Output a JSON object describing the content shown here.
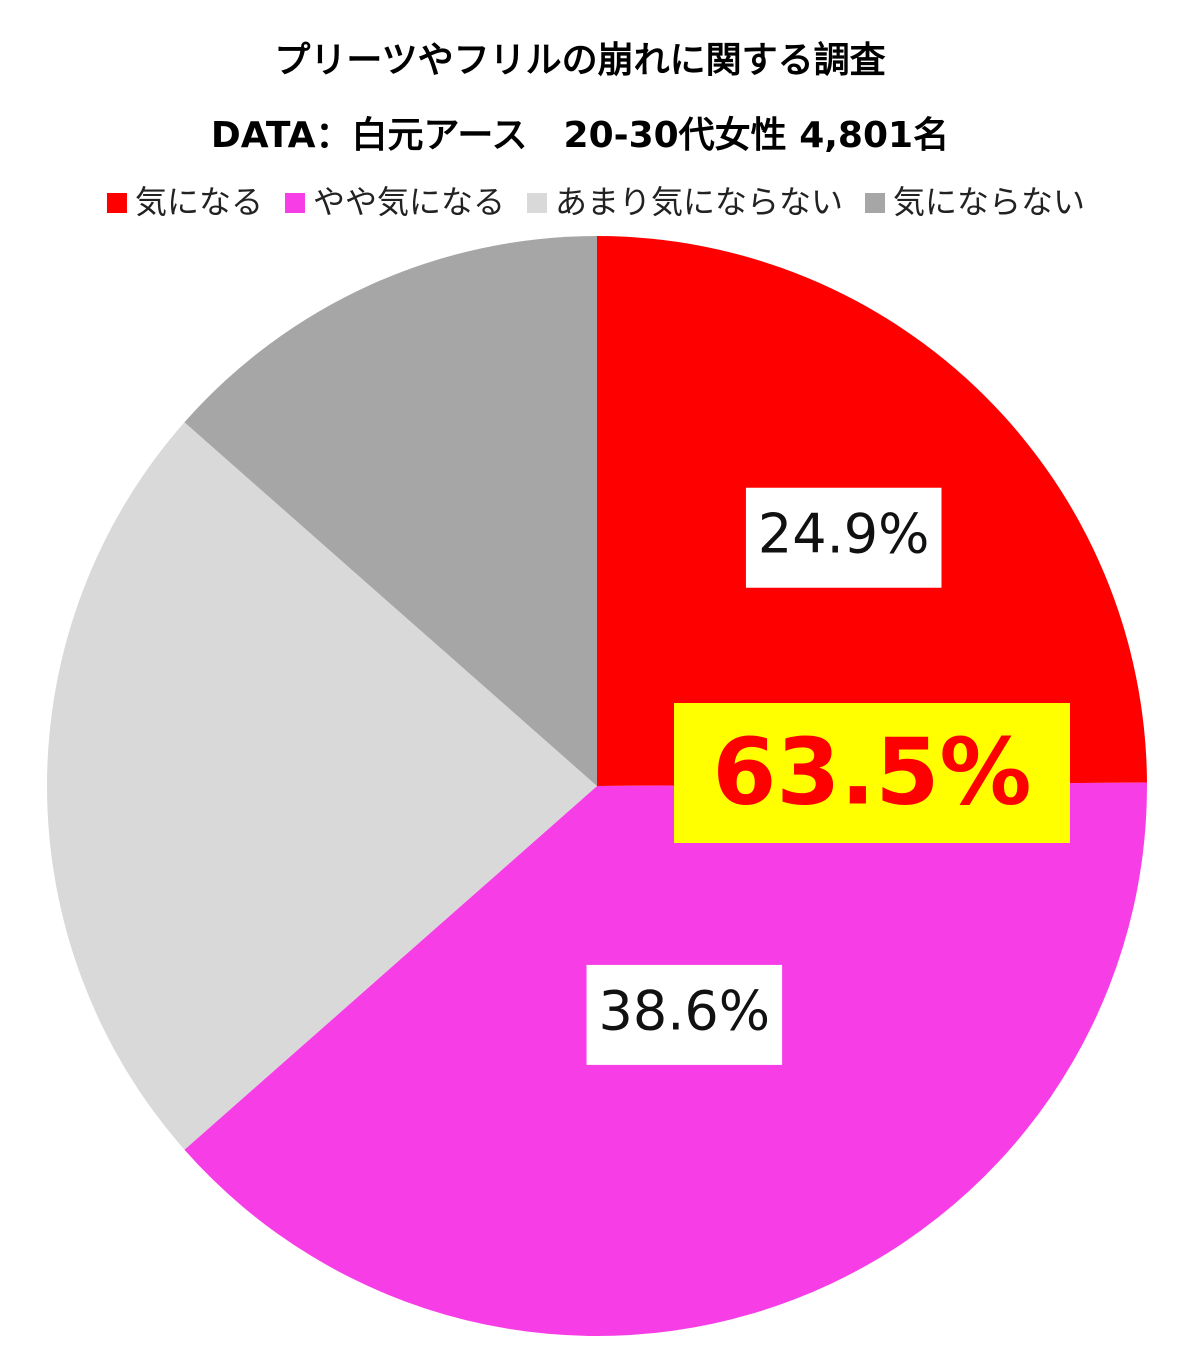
{
  "chart_data": {
    "type": "pie",
    "title": "プリーツやフリルの崩れに関する調査",
    "subtitle": "DATA：白元アース　20-30代女性 4,801名",
    "categories": [
      "気になる",
      "やや気になる",
      "あまり気にならない",
      "気にならない"
    ],
    "values": [
      24.9,
      38.6,
      23.0,
      13.5
    ],
    "value_labels": [
      "24.9%",
      "38.6%",
      null,
      null
    ],
    "colors": [
      "#ff0000",
      "#f73ee6",
      "#d9d9d9",
      "#a6a6a6"
    ],
    "annotation": "63.5%"
  }
}
